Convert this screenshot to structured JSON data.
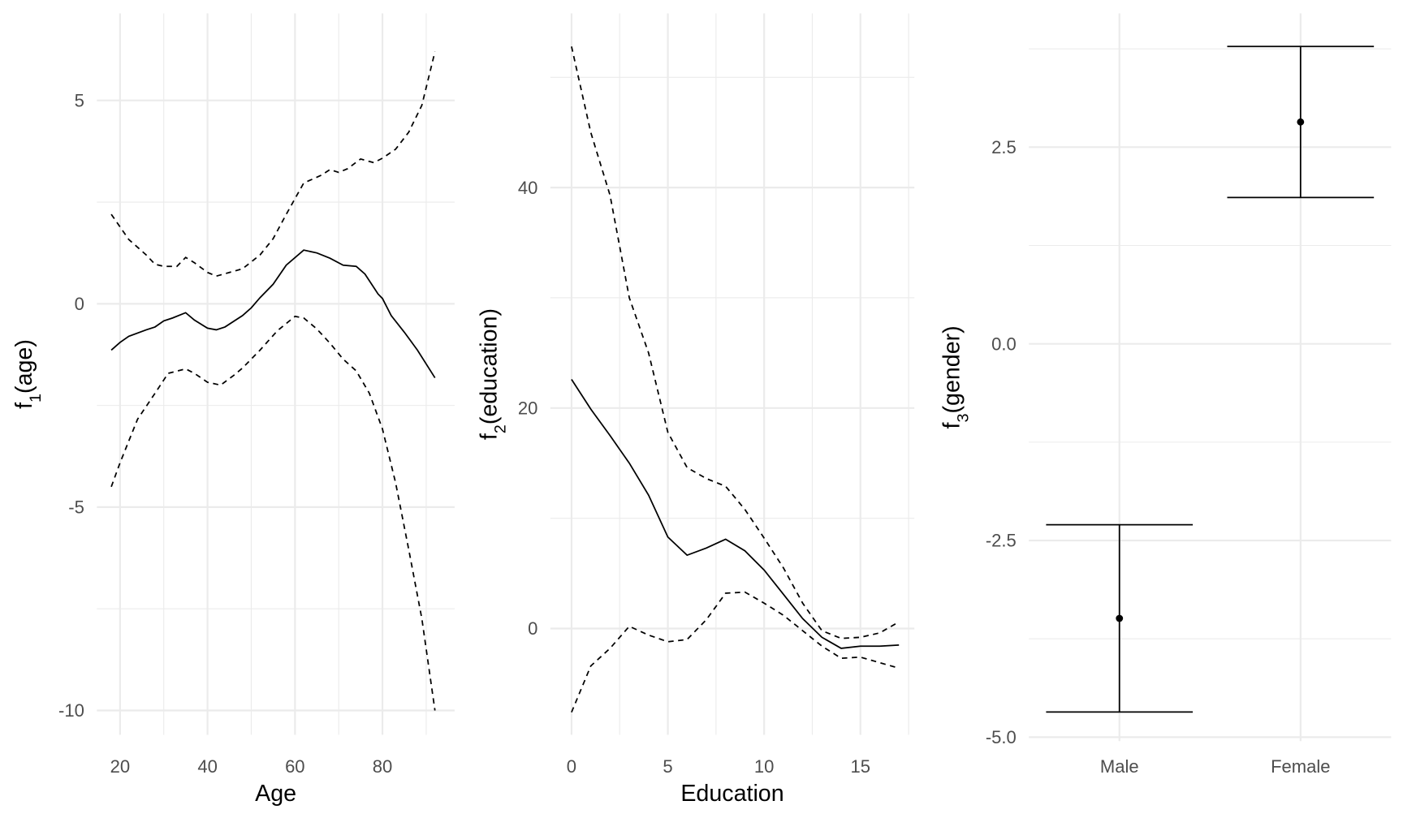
{
  "chart_data": [
    {
      "type": "line",
      "xlabel": "Age",
      "ylabel": [
        "f",
        "1",
        "(age)"
      ],
      "grid": true,
      "xlim": [
        14.7,
        96.5
      ],
      "ylim": [
        -10.6,
        7.14
      ],
      "xticks": [
        20,
        40,
        60,
        80
      ],
      "yticks": [
        -10,
        -5,
        0,
        5
      ],
      "xminor": [
        30,
        50,
        70,
        90
      ],
      "yminor": [
        -7.5,
        -2.5,
        2.5
      ],
      "series": [
        {
          "color": "#000000",
          "dash": false,
          "x": [
            18,
            20,
            22,
            26,
            28,
            30,
            32,
            35,
            37,
            40,
            42,
            44,
            48,
            50,
            52,
            55,
            58,
            62,
            65,
            68,
            71,
            74,
            76,
            79,
            80,
            82,
            85,
            88,
            92
          ],
          "values": [
            -1.14,
            -0.95,
            -0.8,
            -0.64,
            -0.57,
            -0.42,
            -0.35,
            -0.22,
            -0.4,
            -0.6,
            -0.64,
            -0.57,
            -0.29,
            -0.1,
            0.15,
            0.48,
            0.95,
            1.32,
            1.25,
            1.12,
            0.95,
            0.92,
            0.73,
            0.24,
            0.13,
            -0.29,
            -0.7,
            -1.14,
            -1.82
          ]
        },
        {
          "color": "#000000",
          "dash": true,
          "x": [
            18,
            22,
            26,
            28,
            30,
            33,
            35,
            37,
            40,
            42,
            45,
            48,
            52,
            55,
            58,
            62,
            66,
            68,
            70,
            72,
            75,
            78,
            80,
            83,
            86,
            89,
            92
          ],
          "values": [
            2.2,
            1.58,
            1.2,
            0.97,
            0.92,
            0.92,
            1.14,
            1.01,
            0.77,
            0.68,
            0.77,
            0.86,
            1.2,
            1.6,
            2.2,
            2.97,
            3.16,
            3.3,
            3.23,
            3.32,
            3.56,
            3.47,
            3.58,
            3.8,
            4.22,
            4.88,
            6.2
          ]
        },
        {
          "color": "#000000",
          "dash": true,
          "x": [
            18,
            20,
            24,
            28,
            31,
            35,
            37,
            40,
            43,
            46,
            48,
            52,
            56,
            60,
            62,
            65,
            68,
            71,
            74,
            77,
            80,
            83,
            86,
            89,
            92
          ],
          "values": [
            -4.5,
            -3.91,
            -2.84,
            -2.2,
            -1.71,
            -1.6,
            -1.71,
            -1.93,
            -2.0,
            -1.76,
            -1.58,
            -1.14,
            -0.66,
            -0.31,
            -0.35,
            -0.62,
            -0.97,
            -1.36,
            -1.65,
            -2.2,
            -3.08,
            -4.4,
            -6.04,
            -7.74,
            -10
          ]
        }
      ]
    },
    {
      "type": "line",
      "xlabel": "Education",
      "ylabel": [
        "f",
        "2",
        "(education)"
      ],
      "grid": true,
      "xlim": [
        -1.1,
        17.8
      ],
      "ylim": [
        -9.65,
        55.8
      ],
      "xticks": [
        0,
        5,
        10,
        15
      ],
      "yticks": [
        0,
        20,
        40
      ],
      "xminor": [
        2.5,
        7.5,
        12.5,
        17.5
      ],
      "yminor": [
        10,
        30,
        50
      ],
      "series": [
        {
          "color": "#000000",
          "dash": false,
          "x": [
            0,
            1,
            2,
            3,
            4,
            5,
            6,
            7,
            8,
            9,
            10,
            11,
            12,
            13,
            14,
            15,
            16,
            17
          ],
          "values": [
            22.6,
            19.9,
            17.5,
            15.0,
            12.1,
            8.3,
            6.65,
            7.3,
            8.1,
            7.05,
            5.3,
            3.1,
            0.9,
            -0.8,
            -1.8,
            -1.6,
            -1.6,
            -1.5
          ]
        },
        {
          "color": "#000000",
          "dash": true,
          "x": [
            0,
            1,
            2,
            3,
            4,
            5,
            6,
            7,
            8,
            9,
            10,
            11,
            12,
            13,
            14,
            15,
            16,
            17
          ],
          "values": [
            52.8,
            45.0,
            39.3,
            30.0,
            25.0,
            17.8,
            14.6,
            13.6,
            12.9,
            10.8,
            8.2,
            5.5,
            2.3,
            -0.2,
            -0.9,
            -0.8,
            -0.4,
            0.6
          ]
        },
        {
          "color": "#000000",
          "dash": true,
          "x": [
            0,
            1,
            2,
            3,
            4,
            5,
            6,
            7,
            8,
            9,
            10,
            11,
            12,
            13,
            14,
            15,
            16,
            17
          ],
          "values": [
            -7.6,
            -3.4,
            -1.8,
            0.2,
            -0.6,
            -1.2,
            -1.0,
            0.8,
            3.2,
            3.3,
            2.3,
            1.2,
            -0.2,
            -1.6,
            -2.7,
            -2.6,
            -3.1,
            -3.6
          ]
        }
      ]
    },
    {
      "type": "errorbar",
      "ylabel": [
        "f",
        "3",
        "(gender)"
      ],
      "grid": true,
      "categories": [
        "Male",
        "Female"
      ],
      "color": "#000000",
      "values": [
        -3.49,
        2.82
      ],
      "lower": [
        -4.68,
        1.86
      ],
      "upper": [
        -2.3,
        3.78
      ],
      "ylim": [
        -5.05,
        4.2
      ],
      "yticks": [
        {
          "value": -5,
          "label": "-5.0"
        },
        -2.5,
        {
          "value": 0,
          "label": "0.0"
        },
        2.5
      ],
      "yminor": [
        -3.75,
        -1.25,
        1.25,
        3.75
      ]
    }
  ]
}
